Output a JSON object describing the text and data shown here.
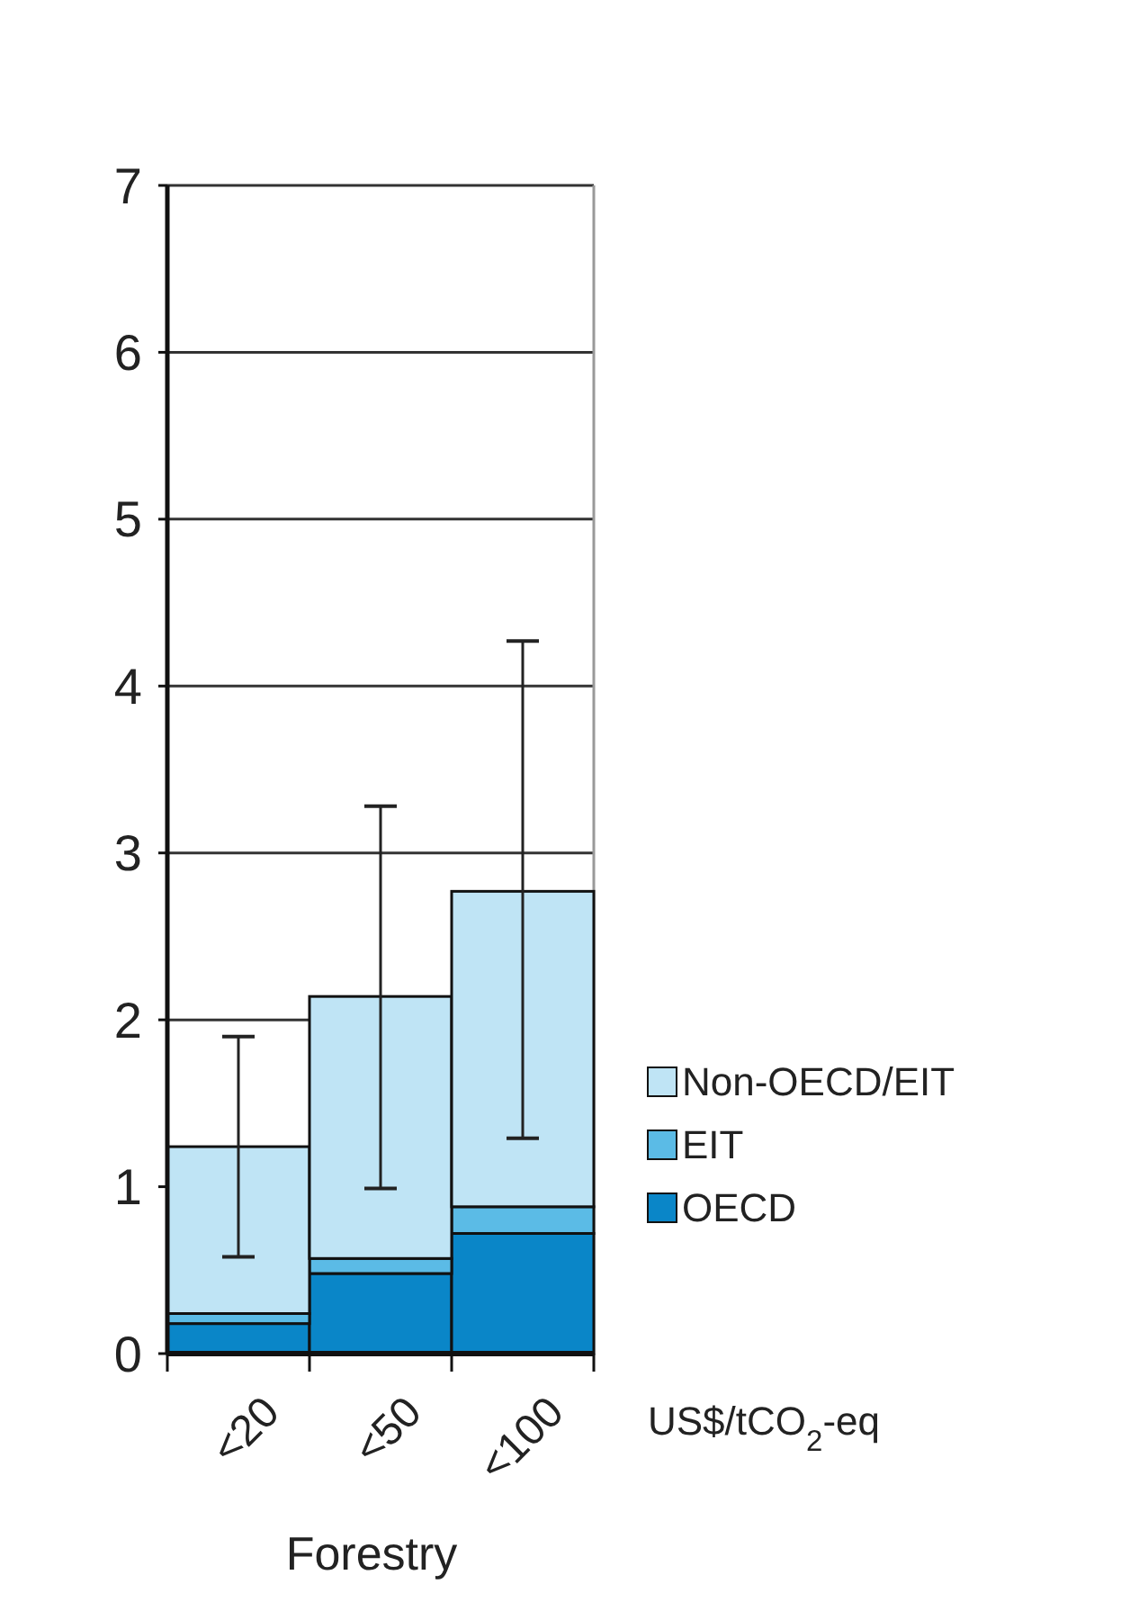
{
  "chart_data": {
    "type": "bar",
    "stacked": true,
    "xlabel": "Forestry",
    "categories": [
      "<20",
      "<50",
      "<100"
    ],
    "series": [
      {
        "name": "OECD",
        "color": "#0a86c8",
        "values": [
          0.18,
          0.48,
          0.72
        ]
      },
      {
        "name": "EIT",
        "color": "#5bbbe6",
        "values": [
          0.06,
          0.09,
          0.16
        ]
      },
      {
        "name": "Non-OECD/EIT",
        "color": "#bfe4f5",
        "values": [
          1.0,
          1.57,
          1.89
        ],
        "errors": [
          [
            0.58,
            1.9
          ],
          [
            0.99,
            3.28
          ],
          [
            1.29,
            4.27
          ]
        ]
      }
    ],
    "ylim": [
      0,
      7
    ],
    "yticks": [
      0,
      1,
      2,
      3,
      4,
      5,
      6,
      7
    ],
    "grid": "y",
    "legend": "right",
    "annotations": [
      "US$/tCO$_{2}$-eq"
    ]
  }
}
